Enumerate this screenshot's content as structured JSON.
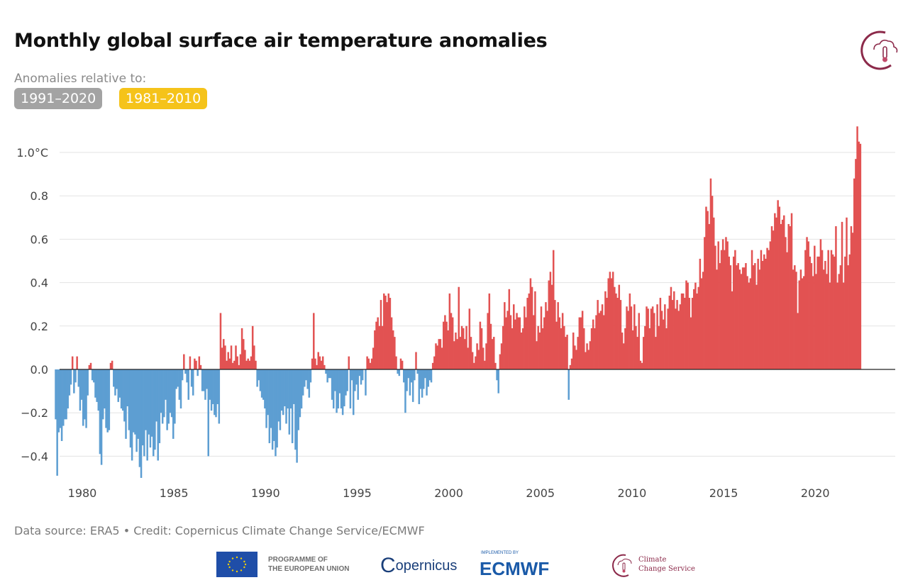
{
  "header": {
    "title": "Monthly global surface air temperature anomalies",
    "subtitle": "Anomalies relative to:",
    "baseline_options": [
      {
        "label": "1991–2020",
        "color": "#a3a3a3",
        "selected": true
      },
      {
        "label": "1981–2010",
        "color": "#f5c31a",
        "selected": false
      }
    ],
    "logo_icon": "climate-change-service-icon"
  },
  "footer": {
    "credit": "Data source: ERA5 • Credit: Copernicus Climate Change Service/ECMWF",
    "eu_line1": "PROGRAMME OF",
    "eu_line2": "THE EUROPEAN UNION",
    "copernicus": "opernicus",
    "copernicus_c": "C",
    "ecmwf_small": "IMPLEMENTED BY",
    "ecmwf": "ECMWF",
    "c3s_line1": "Climate",
    "c3s_line2": "Change Service"
  },
  "colors": {
    "positive": "#e25252",
    "negative": "#5d9ed2",
    "zero_line": "#222222",
    "grid": "#e3e3e3",
    "tick_text": "#444444"
  },
  "chart_data": {
    "type": "bar",
    "title": "Monthly global surface air temperature anomalies",
    "xlabel": "",
    "ylabel": "",
    "yunit": "°C",
    "ylim": [
      -0.5,
      1.15
    ],
    "yticks": [
      -0.4,
      -0.2,
      0.0,
      0.2,
      0.4,
      0.6,
      0.8,
      1.0
    ],
    "ytick_labels": [
      "−0.4",
      "−0.2",
      "0.0",
      "0.2",
      "0.4",
      "0.6",
      "0.8",
      "1.0°C"
    ],
    "xticks": [
      1980,
      1985,
      1990,
      1995,
      2000,
      2005,
      2010,
      2015,
      2020
    ],
    "xtick_labels": [
      "1980",
      "1985",
      "1990",
      "1995",
      "2000",
      "2005",
      "2010",
      "2015",
      "2020"
    ],
    "start": "1979-01",
    "frequency": "monthly",
    "grid": true,
    "legend": "none",
    "series": [
      {
        "name": "Monthly anomaly (1991–2020 baseline)",
        "values": [
          -0.23,
          -0.49,
          -0.29,
          -0.27,
          -0.33,
          -0.26,
          -0.23,
          -0.23,
          -0.18,
          -0.12,
          -0.07,
          0.06,
          -0.11,
          -0.06,
          0.06,
          -0.08,
          -0.19,
          -0.14,
          -0.26,
          -0.23,
          -0.27,
          -0.12,
          0.02,
          0.03,
          -0.05,
          -0.06,
          -0.13,
          -0.15,
          -0.19,
          -0.39,
          -0.44,
          -0.23,
          -0.18,
          -0.27,
          -0.29,
          -0.28,
          0.03,
          0.04,
          -0.08,
          -0.12,
          -0.09,
          -0.15,
          -0.13,
          -0.18,
          -0.19,
          -0.24,
          -0.32,
          -0.17,
          -0.28,
          -0.36,
          -0.42,
          -0.29,
          -0.3,
          -0.38,
          -0.32,
          -0.45,
          -0.5,
          -0.35,
          -0.4,
          -0.28,
          -0.42,
          -0.3,
          -0.36,
          -0.31,
          -0.4,
          -0.37,
          -0.24,
          -0.42,
          -0.34,
          -0.2,
          -0.25,
          -0.22,
          -0.14,
          -0.28,
          -0.25,
          -0.2,
          -0.22,
          -0.32,
          -0.25,
          -0.09,
          -0.08,
          -0.14,
          -0.18,
          -0.05,
          0.07,
          -0.02,
          -0.06,
          -0.14,
          0.06,
          -0.08,
          -0.12,
          0.05,
          0.04,
          -0.03,
          0.06,
          0.02,
          -0.1,
          -0.1,
          -0.14,
          -0.09,
          -0.4,
          -0.14,
          -0.19,
          -0.16,
          -0.21,
          -0.22,
          -0.16,
          -0.25,
          0.26,
          0.1,
          0.14,
          0.11,
          0.04,
          0.08,
          0.05,
          0.11,
          0.03,
          0.04,
          0.11,
          0.06,
          0.02,
          0.07,
          0.19,
          0.14,
          0.09,
          0.04,
          0.05,
          0.04,
          0.06,
          0.2,
          0.11,
          0.04,
          -0.08,
          -0.05,
          -0.1,
          -0.13,
          -0.14,
          -0.18,
          -0.27,
          -0.21,
          -0.34,
          -0.27,
          -0.37,
          -0.33,
          -0.4,
          -0.36,
          -0.24,
          -0.28,
          -0.19,
          -0.21,
          -0.17,
          -0.25,
          -0.18,
          -0.3,
          -0.18,
          -0.34,
          -0.16,
          -0.37,
          -0.43,
          -0.28,
          -0.22,
          -0.18,
          -0.12,
          -0.08,
          -0.05,
          -0.09,
          -0.13,
          -0.06,
          0.05,
          0.26,
          0.05,
          0.02,
          0.08,
          0.06,
          0.04,
          0.06,
          0.02,
          -0.02,
          -0.06,
          -0.04,
          -0.04,
          -0.14,
          -0.18,
          -0.1,
          -0.2,
          -0.18,
          -0.11,
          -0.18,
          -0.21,
          -0.17,
          -0.12,
          -0.1,
          0.06,
          -0.18,
          -0.05,
          -0.21,
          -0.1,
          -0.07,
          -0.14,
          -0.03,
          -0.07,
          -0.05,
          0.0,
          -0.12,
          0.06,
          0.05,
          0.03,
          0.05,
          0.1,
          0.18,
          0.22,
          0.24,
          0.2,
          0.32,
          0.2,
          0.35,
          0.34,
          0.31,
          0.35,
          0.33,
          0.24,
          0.18,
          0.15,
          0.06,
          -0.02,
          -0.03,
          0.05,
          0.04,
          -0.06,
          -0.2,
          -0.1,
          -0.04,
          -0.12,
          -0.06,
          -0.15,
          -0.05,
          0.08,
          -0.02,
          -0.16,
          -0.09,
          -0.13,
          -0.09,
          -0.04,
          -0.12,
          -0.08,
          -0.05,
          -0.06,
          0.03,
          0.06,
          0.12,
          0.11,
          0.14,
          0.14,
          0.1,
          0.22,
          0.25,
          0.22,
          0.18,
          0.35,
          0.26,
          0.24,
          0.13,
          0.17,
          0.14,
          0.38,
          0.15,
          0.2,
          0.19,
          0.14,
          0.2,
          0.1,
          0.28,
          0.15,
          0.08,
          0.03,
          0.06,
          0.12,
          0.09,
          0.22,
          0.19,
          0.1,
          0.04,
          0.12,
          0.26,
          0.35,
          0.21,
          0.14,
          0.15,
          0.03,
          -0.05,
          -0.11,
          0.07,
          0.12,
          0.2,
          0.31,
          0.24,
          0.27,
          0.37,
          0.25,
          0.19,
          0.3,
          0.23,
          0.26,
          0.24,
          0.24,
          0.17,
          0.19,
          0.29,
          0.24,
          0.33,
          0.35,
          0.42,
          0.38,
          0.25,
          0.36,
          0.13,
          0.2,
          0.17,
          0.29,
          0.19,
          0.24,
          0.31,
          0.27,
          0.41,
          0.45,
          0.39,
          0.55,
          0.32,
          0.22,
          0.31,
          0.24,
          0.19,
          0.26,
          0.2,
          0.15,
          0.16,
          -0.14,
          0.02,
          0.05,
          0.17,
          0.11,
          0.09,
          0.15,
          0.24,
          0.24,
          0.27,
          0.19,
          0.08,
          0.12,
          0.09,
          0.13,
          0.19,
          0.23,
          0.19,
          0.25,
          0.32,
          0.26,
          0.27,
          0.3,
          0.25,
          0.36,
          0.33,
          0.42,
          0.45,
          0.42,
          0.45,
          0.38,
          0.35,
          0.33,
          0.39,
          0.32,
          0.17,
          0.12,
          0.19,
          0.29,
          0.27,
          0.35,
          0.29,
          0.18,
          0.3,
          0.2,
          0.15,
          0.26,
          0.04,
          0.03,
          0.15,
          0.2,
          0.29,
          0.28,
          0.19,
          0.28,
          0.29,
          0.26,
          0.15,
          0.3,
          0.2,
          0.33,
          0.27,
          0.23,
          0.3,
          0.19,
          0.28,
          0.34,
          0.38,
          0.32,
          0.36,
          0.28,
          0.32,
          0.27,
          0.3,
          0.35,
          0.35,
          0.33,
          0.41,
          0.4,
          0.33,
          0.24,
          0.33,
          0.37,
          0.4,
          0.35,
          0.38,
          0.51,
          0.42,
          0.45,
          0.61,
          0.75,
          0.73,
          0.67,
          0.88,
          0.8,
          0.7,
          0.57,
          0.46,
          0.59,
          0.49,
          0.55,
          0.6,
          0.55,
          0.61,
          0.59,
          0.52,
          0.48,
          0.36,
          0.52,
          0.55,
          0.48,
          0.49,
          0.46,
          0.44,
          0.47,
          0.47,
          0.49,
          0.43,
          0.4,
          0.42,
          0.55,
          0.48,
          0.49,
          0.39,
          0.51,
          0.46,
          0.55,
          0.5,
          0.53,
          0.51,
          0.56,
          0.55,
          0.59,
          0.66,
          0.64,
          0.72,
          0.7,
          0.78,
          0.75,
          0.67,
          0.69,
          0.71,
          0.61,
          0.54,
          0.67,
          0.66,
          0.72,
          0.46,
          0.48,
          0.45,
          0.26,
          0.41,
          0.46,
          0.42,
          0.43,
          0.55,
          0.61,
          0.59,
          0.52,
          0.49,
          0.43,
          0.57,
          0.44,
          0.52,
          0.52,
          0.6,
          0.55,
          0.46,
          0.5,
          0.44,
          0.55,
          0.4,
          0.55,
          0.53,
          0.52,
          0.66,
          0.4,
          0.44,
          0.48,
          0.68,
          0.4,
          0.52,
          0.7,
          0.48,
          0.53,
          0.66,
          0.63,
          0.88,
          0.97,
          1.12,
          1.05,
          1.04
        ]
      }
    ]
  }
}
